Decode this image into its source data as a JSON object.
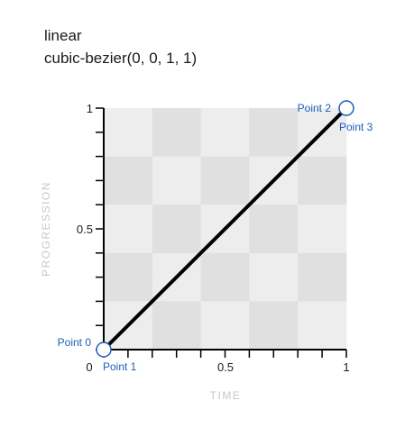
{
  "heading": {
    "name": "linear",
    "function": "cubic-bezier(0, 0, 1, 1)"
  },
  "axes": {
    "x_title": "TIME",
    "y_title": "PROGRESSION",
    "x_ticks": [
      "0",
      "0.5",
      "1"
    ],
    "y_ticks": [
      "1",
      "0.5"
    ],
    "x_range": [
      0,
      1
    ],
    "y_range": [
      0,
      1
    ]
  },
  "curve": {
    "type": "cubic-bezier",
    "control_points": [
      {
        "label": "Point 0",
        "x": 0,
        "y": 0
      },
      {
        "label": "Point 1",
        "x": 0,
        "y": 0
      },
      {
        "label": "Point 2",
        "x": 1,
        "y": 1
      },
      {
        "label": "Point 3",
        "x": 1,
        "y": 1
      }
    ]
  },
  "colors": {
    "curve": "#000000",
    "handle_stroke": "#1c5fb8",
    "point_label": "#1c5fb8",
    "grid_light": "#ededed",
    "grid_dark": "#e0e0e0",
    "axis_title": "#c8c8c8"
  }
}
